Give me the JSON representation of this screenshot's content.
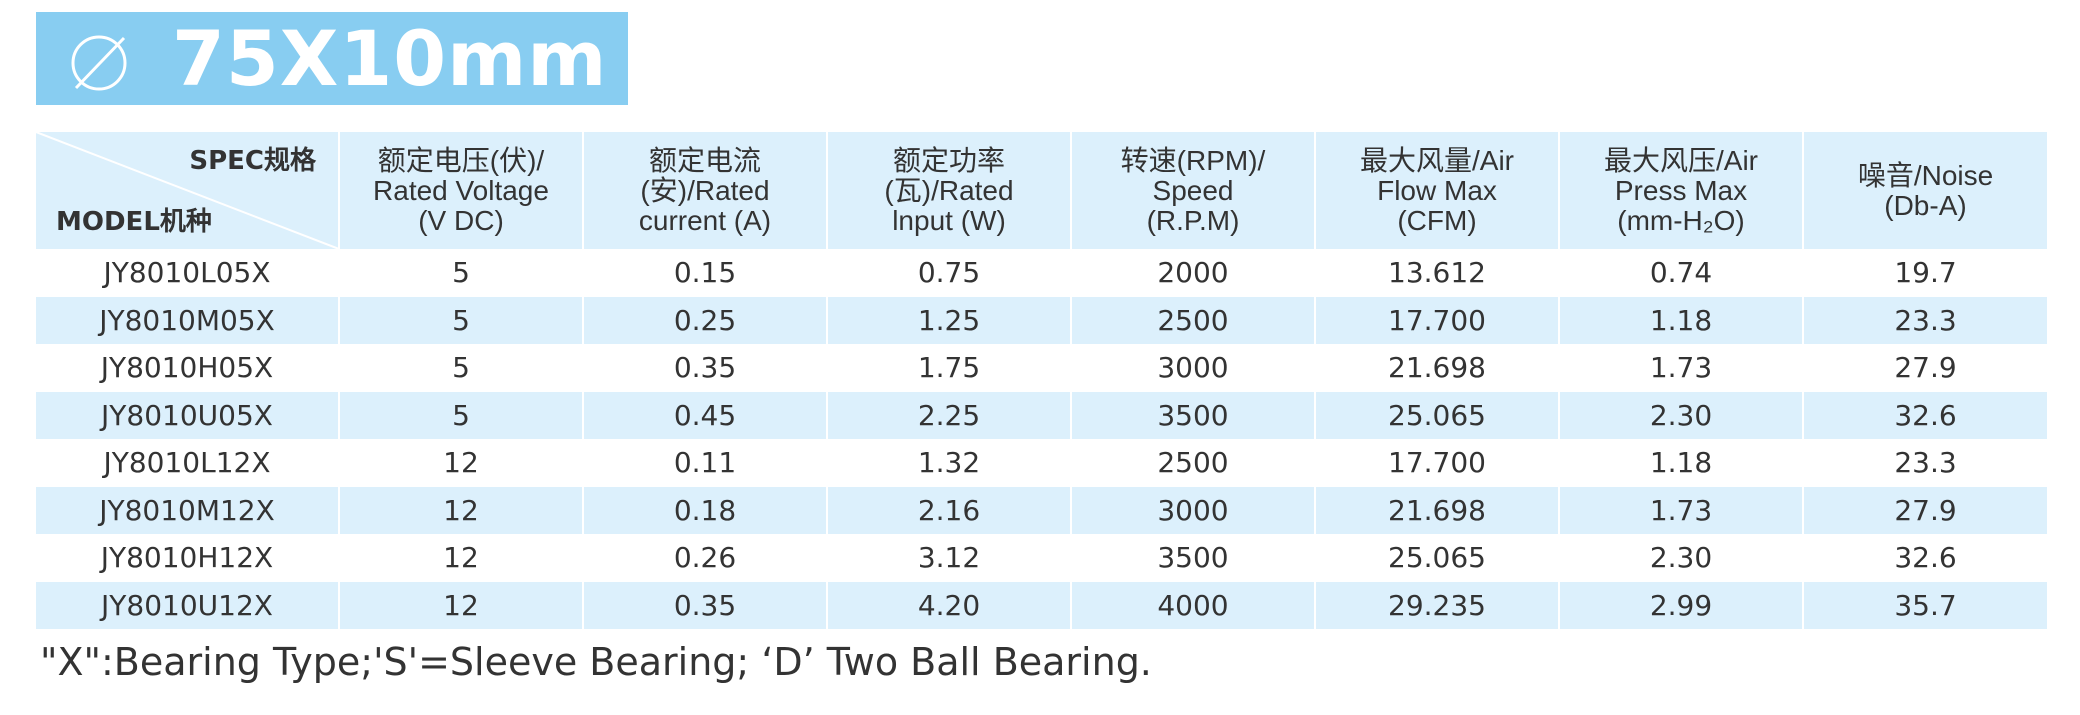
{
  "title": {
    "icon": "diameter-icon",
    "text": "75X10mm"
  },
  "colors": {
    "banner": "#88cdf1",
    "header_bg": "#dcf0fc",
    "stripe": "#dcf0fc"
  },
  "table": {
    "corner": {
      "spec": "SPEC规格",
      "model": "MODEL机种"
    },
    "headers": [
      [
        "额定电压(伏)/",
        "Rated Voltage",
        "(V DC)"
      ],
      [
        "额定电流",
        "(安)/Rated",
        "current (A)"
      ],
      [
        "额定功率",
        "(瓦)/Rated",
        "lnput (W)"
      ],
      [
        "转速(RPM)/",
        "Speed",
        "(R.P.M)"
      ],
      [
        "最大风量/Air",
        "Flow Max",
        "(CFM)"
      ],
      [
        "最大风压/Air",
        "Press Max",
        "(mm-H₂O)"
      ],
      [
        "噪音/Noise",
        "(Db-A)"
      ]
    ],
    "rows": [
      [
        "JY8010L05X",
        "5",
        "0.15",
        "0.75",
        "2000",
        "13.612",
        "0.74",
        "19.7"
      ],
      [
        "JY8010M05X",
        "5",
        "0.25",
        "1.25",
        "2500",
        "17.700",
        "1.18",
        "23.3"
      ],
      [
        "JY8010H05X",
        "5",
        "0.35",
        "1.75",
        "3000",
        "21.698",
        "1.73",
        "27.9"
      ],
      [
        "JY8010U05X",
        "5",
        "0.45",
        "2.25",
        "3500",
        "25.065",
        "2.30",
        "32.6"
      ],
      [
        "JY8010L12X",
        "12",
        "0.11",
        "1.32",
        "2500",
        "17.700",
        "1.18",
        "23.3"
      ],
      [
        "JY8010M12X",
        "12",
        "0.18",
        "2.16",
        "3000",
        "21.698",
        "1.73",
        "27.9"
      ],
      [
        "JY8010H12X",
        "12",
        "0.26",
        "3.12",
        "3500",
        "25.065",
        "2.30",
        "32.6"
      ],
      [
        "JY8010U12X",
        "12",
        "0.35",
        "4.20",
        "4000",
        "29.235",
        "2.99",
        "35.7"
      ]
    ]
  },
  "footnote": "\"X\":Bearing Type;'S'=Sleeve Bearing; ‘D’ Two Ball Bearing."
}
